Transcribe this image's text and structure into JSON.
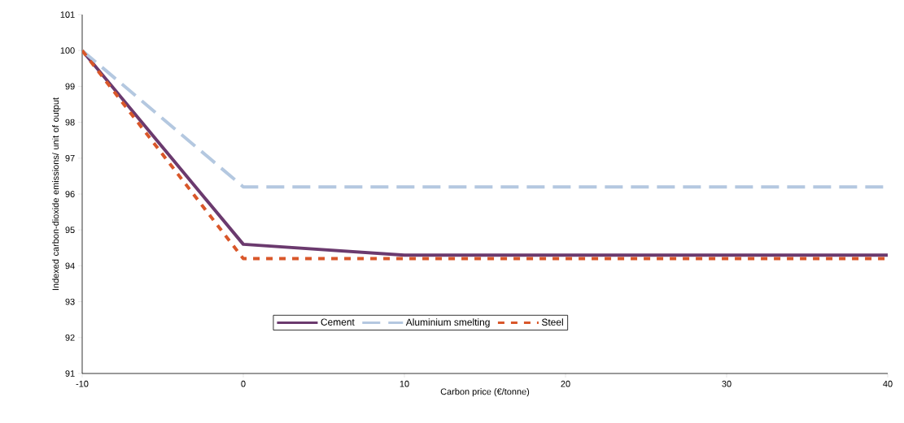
{
  "chart_data": {
    "type": "line",
    "xlabel": "Carbon price (€/tonne)",
    "ylabel": "Indexed carbon-dioxide emissions/ unit of output",
    "x": [
      -10,
      0,
      10,
      20,
      30,
      40
    ],
    "series": [
      {
        "name": "Cement",
        "color": "#6b3a6e",
        "line_style": "solid",
        "values": [
          100,
          94.6,
          94.3,
          94.3,
          94.3,
          94.3
        ]
      },
      {
        "name": "Aluminium smelting",
        "color": "#b4c8e0",
        "line_style": "dashed",
        "values": [
          100,
          96.2,
          96.2,
          96.2,
          96.2,
          96.2
        ]
      },
      {
        "name": "Steel",
        "color": "#d9572a",
        "line_style": "dotted",
        "values": [
          100,
          94.2,
          94.2,
          94.2,
          94.2,
          94.2
        ]
      }
    ],
    "xlim": [
      -10,
      40
    ],
    "xticks": [
      -10,
      0,
      10,
      20,
      30,
      40
    ],
    "ylim": [
      91,
      101
    ],
    "yticks": [
      91,
      92,
      93,
      94,
      95,
      96,
      97,
      98,
      99,
      100,
      101
    ],
    "grid": false,
    "legend": "bottom",
    "marker": "none"
  }
}
